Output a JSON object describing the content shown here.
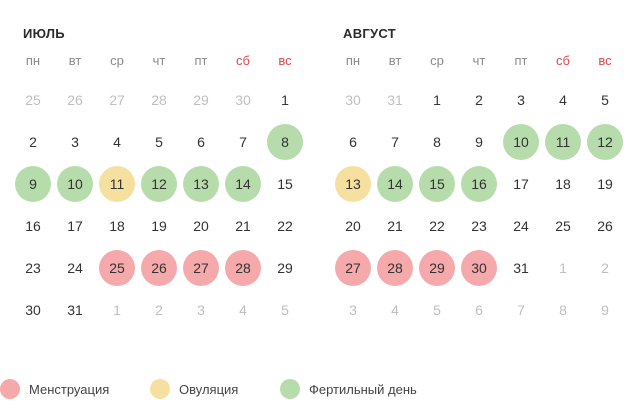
{
  "colors": {
    "menstruation": "#f5a9ab",
    "ovulation": "#f6e0a0",
    "fertile": "#b6dcab",
    "weekend_text": "#e0474c"
  },
  "weekdays": [
    "пн",
    "вт",
    "ср",
    "чт",
    "пт",
    "сб",
    "вс"
  ],
  "months": [
    {
      "title": "ИЮЛЬ",
      "weeks": [
        [
          {
            "d": "25",
            "o": true
          },
          {
            "d": "26",
            "o": true
          },
          {
            "d": "27",
            "o": true
          },
          {
            "d": "28",
            "o": true
          },
          {
            "d": "29",
            "o": true
          },
          {
            "d": "30",
            "o": true
          },
          {
            "d": "1"
          }
        ],
        [
          {
            "d": "2"
          },
          {
            "d": "3"
          },
          {
            "d": "4"
          },
          {
            "d": "5"
          },
          {
            "d": "6"
          },
          {
            "d": "7"
          },
          {
            "d": "8",
            "m": "fertile"
          }
        ],
        [
          {
            "d": "9",
            "m": "fertile"
          },
          {
            "d": "10",
            "m": "fertile"
          },
          {
            "d": "11",
            "m": "ovulation"
          },
          {
            "d": "12",
            "m": "fertile"
          },
          {
            "d": "13",
            "m": "fertile"
          },
          {
            "d": "14",
            "m": "fertile"
          },
          {
            "d": "15"
          }
        ],
        [
          {
            "d": "16"
          },
          {
            "d": "17"
          },
          {
            "d": "18"
          },
          {
            "d": "19"
          },
          {
            "d": "20"
          },
          {
            "d": "21"
          },
          {
            "d": "22"
          }
        ],
        [
          {
            "d": "23"
          },
          {
            "d": "24"
          },
          {
            "d": "25",
            "m": "menstruation"
          },
          {
            "d": "26",
            "m": "menstruation"
          },
          {
            "d": "27",
            "m": "menstruation"
          },
          {
            "d": "28",
            "m": "menstruation"
          },
          {
            "d": "29"
          }
        ],
        [
          {
            "d": "30"
          },
          {
            "d": "31"
          },
          {
            "d": "1",
            "o": true
          },
          {
            "d": "2",
            "o": true
          },
          {
            "d": "3",
            "o": true
          },
          {
            "d": "4",
            "o": true
          },
          {
            "d": "5",
            "o": true
          }
        ]
      ]
    },
    {
      "title": "АВГУСТ",
      "weeks": [
        [
          {
            "d": "30",
            "o": true
          },
          {
            "d": "31",
            "o": true
          },
          {
            "d": "1"
          },
          {
            "d": "2"
          },
          {
            "d": "3"
          },
          {
            "d": "4"
          },
          {
            "d": "5"
          }
        ],
        [
          {
            "d": "6"
          },
          {
            "d": "7"
          },
          {
            "d": "8"
          },
          {
            "d": "9"
          },
          {
            "d": "10",
            "m": "fertile"
          },
          {
            "d": "11",
            "m": "fertile"
          },
          {
            "d": "12",
            "m": "fertile"
          }
        ],
        [
          {
            "d": "13",
            "m": "ovulation"
          },
          {
            "d": "14",
            "m": "fertile"
          },
          {
            "d": "15",
            "m": "fertile"
          },
          {
            "d": "16",
            "m": "fertile"
          },
          {
            "d": "17"
          },
          {
            "d": "18"
          },
          {
            "d": "19"
          }
        ],
        [
          {
            "d": "20"
          },
          {
            "d": "21"
          },
          {
            "d": "22"
          },
          {
            "d": "23"
          },
          {
            "d": "24"
          },
          {
            "d": "25"
          },
          {
            "d": "26"
          }
        ],
        [
          {
            "d": "27",
            "m": "menstruation"
          },
          {
            "d": "28",
            "m": "menstruation"
          },
          {
            "d": "29",
            "m": "menstruation"
          },
          {
            "d": "30",
            "m": "menstruation"
          },
          {
            "d": "31"
          },
          {
            "d": "1",
            "o": true
          },
          {
            "d": "2",
            "o": true
          }
        ],
        [
          {
            "d": "3",
            "o": true
          },
          {
            "d": "4",
            "o": true
          },
          {
            "d": "5",
            "o": true
          },
          {
            "d": "6",
            "o": true
          },
          {
            "d": "7",
            "o": true
          },
          {
            "d": "8",
            "o": true
          },
          {
            "d": "9",
            "o": true
          }
        ]
      ]
    }
  ],
  "legend": [
    {
      "key": "menstruation",
      "label": "Менструация"
    },
    {
      "key": "ovulation",
      "label": "Овуляция"
    },
    {
      "key": "fertile",
      "label": "Фертильный день"
    }
  ]
}
